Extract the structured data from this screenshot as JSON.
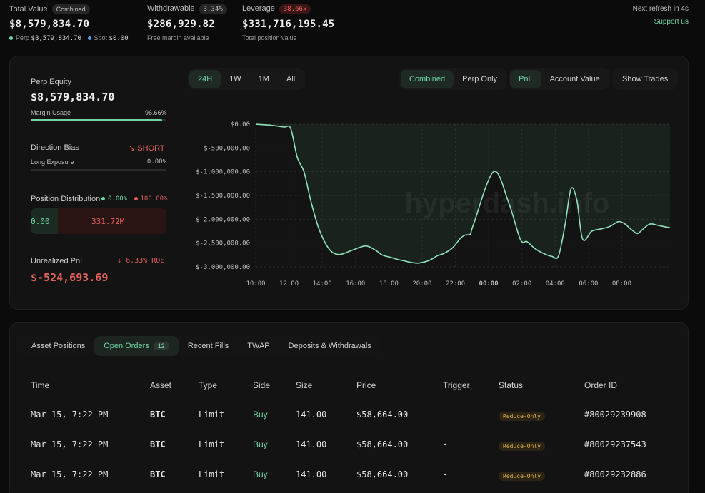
{
  "header": {
    "total_value": {
      "label": "Total Value",
      "tag": "Combined",
      "value": "$8,579,834.70",
      "perp_label": "Perp",
      "perp_value": "$8,579,834.70",
      "spot_label": "Spot",
      "spot_value": "$0.00"
    },
    "withdrawable": {
      "label": "Withdrawable",
      "tag": "3.34%",
      "value": "$286,929.82",
      "sub": "Free margin available"
    },
    "leverage": {
      "label": "Leverage",
      "tag": "38.66x",
      "value": "$331,716,195.45",
      "sub": "Total position value"
    },
    "refresh": "Next refresh in 4s",
    "support": "Support us"
  },
  "summary": {
    "perp_equity_label": "Perp Equity",
    "perp_equity_value": "$8,579,834.70",
    "margin_usage_label": "Margin Usage",
    "margin_usage_value": "96.66%",
    "margin_usage_pct": 96.66,
    "direction_bias_label": "Direction Bias",
    "direction_bias_value": "SHORT",
    "long_exposure_label": "Long Exposure",
    "long_exposure_value": "0.00%",
    "long_exposure_pct": 0,
    "position_distribution_label": "Position Distribution",
    "dist_long": "0.00%",
    "dist_short": "100.00%",
    "dist_long_amount": "0.00",
    "dist_short_amount": "331.72M",
    "unrealized_label": "Unrealized PnL",
    "roe": "6.33% ROE",
    "unrealized_value": "$-524,693.69"
  },
  "chart_controls": {
    "ranges": [
      "24H",
      "1W",
      "1M",
      "All"
    ],
    "active_range": "24H",
    "modes": [
      "Combined",
      "Perp Only"
    ],
    "active_mode": "Combined",
    "metrics": [
      "PnL",
      "Account Value"
    ],
    "active_metric": "PnL",
    "show_trades": "Show Trades"
  },
  "watermark": "hyperdash.info",
  "chart_data": {
    "type": "area",
    "x_labels": [
      "10:00",
      "12:00",
      "14:00",
      "16:00",
      "18:00",
      "20:00",
      "22:00",
      "00:00",
      "02:00",
      "04:00",
      "06:00",
      "08:00"
    ],
    "y_tick_labels": [
      "$0.00",
      "$-500,000.00",
      "$-1,000,000.00",
      "$-1,500,000.00",
      "$-2,000,000.00",
      "$-2,500,000.00",
      "$-3,000,000.00"
    ],
    "ylim": [
      -3000000,
      0
    ],
    "grid": true,
    "series": [
      {
        "x": [
          0,
          0.8,
          1.7,
          2.1,
          2.5,
          2.9,
          3.3,
          3.8,
          4.4,
          5.0,
          5.8,
          6.6,
          7.2,
          7.6,
          8.1,
          8.6,
          9.0,
          9.4,
          9.8,
          10.4,
          10.9,
          11.3,
          11.8,
          12.1,
          12.3,
          12.6,
          12.9,
          13.1,
          14.3,
          15.2,
          15.9,
          16.3,
          16.8,
          17.3,
          17.8,
          18.2,
          18.6,
          18.95,
          19.3,
          19.65,
          20.2,
          20.8,
          21.3,
          21.8,
          22.2,
          22.45,
          22.7,
          22.95,
          23.3,
          23.7,
          24.2,
          24.9
        ],
        "y": [
          0,
          -20000,
          -60000,
          -90000,
          -700000,
          -1000000,
          -1600000,
          -2200000,
          -2620000,
          -2740000,
          -2650000,
          -2560000,
          -2650000,
          -2750000,
          -2800000,
          -2850000,
          -2880000,
          -2910000,
          -2920000,
          -2870000,
          -2770000,
          -2720000,
          -2610000,
          -2490000,
          -2400000,
          -2330000,
          -2310000,
          -2100000,
          -1000000,
          -1650000,
          -2420000,
          -2470000,
          -2620000,
          -2720000,
          -2780000,
          -2770000,
          -2100000,
          -1360000,
          -1600000,
          -2420000,
          -2250000,
          -2200000,
          -2150000,
          -2050000,
          -2100000,
          -2180000,
          -2250000,
          -2300000,
          -2200000,
          -2100000,
          -2130000,
          -2180000
        ]
      }
    ]
  },
  "orders_tabs": [
    {
      "label": "Asset Positions",
      "count": ""
    },
    {
      "label": "Open Orders",
      "count": "12"
    },
    {
      "label": "Recent Fills",
      "count": ""
    },
    {
      "label": "TWAP",
      "count": ""
    },
    {
      "label": "Deposits & Withdrawals",
      "count": ""
    }
  ],
  "orders_active_tab": "Open Orders",
  "table": {
    "headers": [
      "Time",
      "Asset",
      "Type",
      "Side",
      "Size",
      "Price",
      "Trigger",
      "Status",
      "Order ID"
    ],
    "rows": [
      [
        "Mar 15, 7:22 PM",
        "BTC",
        "Limit",
        "Buy",
        "141.00",
        "$58,664.00",
        "-",
        "Reduce-Only",
        "#80029239908"
      ],
      [
        "Mar 15, 7:22 PM",
        "BTC",
        "Limit",
        "Buy",
        "141.00",
        "$58,664.00",
        "-",
        "Reduce-Only",
        "#80029237543"
      ],
      [
        "Mar 15, 7:22 PM",
        "BTC",
        "Limit",
        "Buy",
        "141.00",
        "$58,664.00",
        "-",
        "Reduce-Only",
        "#80029232886"
      ]
    ]
  },
  "colors": {
    "accent": "#6fd7a4",
    "negative": "#e0605a",
    "warning": "#e2b54a",
    "background": "#0b0b0b",
    "panel": "#131313"
  }
}
